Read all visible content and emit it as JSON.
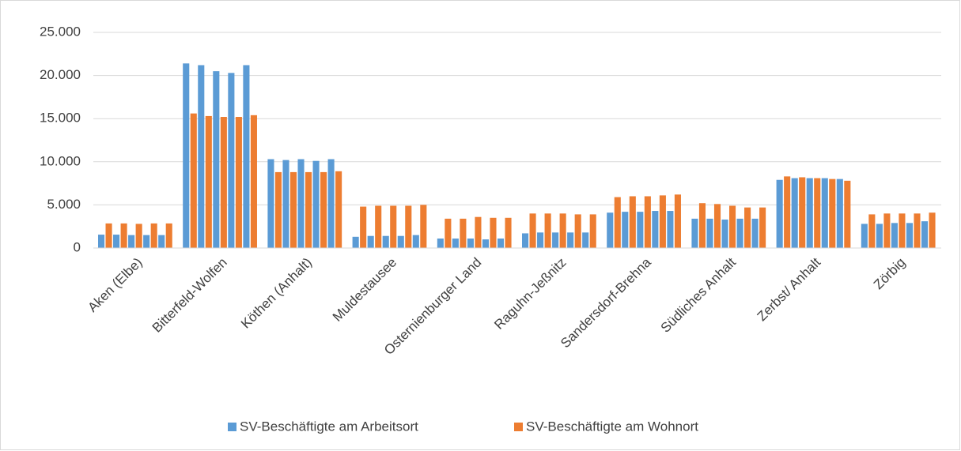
{
  "chart_data": {
    "type": "grouped-bar",
    "categories": [
      "Aken (Elbe)",
      "Bitterfeld-Wolfen",
      "Köthen (Anhalt)",
      "Muldestausee",
      "Osternienburger Land",
      "Raguhn-Jeßnitz",
      "Sandersdorf-Brehna",
      "Südliches Anhalt",
      "Zerbst/ Anhalt",
      "Zörbig"
    ],
    "series": [
      {
        "name": "SV-Beschäftigte am Arbeitsort",
        "color": "#5b9bd5",
        "values": [
          [
            1550,
            1550,
            1500,
            1500,
            1500
          ],
          [
            21400,
            21200,
            20500,
            20300,
            21200
          ],
          [
            10300,
            10200,
            10300,
            10100,
            10300
          ],
          [
            1300,
            1400,
            1400,
            1400,
            1500
          ],
          [
            1100,
            1100,
            1100,
            1000,
            1100
          ],
          [
            1700,
            1800,
            1800,
            1800,
            1800
          ],
          [
            4100,
            4200,
            4200,
            4300,
            4300
          ],
          [
            3400,
            3400,
            3300,
            3400,
            3400
          ],
          [
            7900,
            8100,
            8100,
            8100,
            8000
          ],
          [
            2800,
            2800,
            2900,
            2900,
            3100
          ]
        ]
      },
      {
        "name": "SV-Beschäftigte am Wohnort",
        "color": "#ed7d31",
        "values": [
          [
            2850,
            2850,
            2800,
            2850,
            2850
          ],
          [
            15600,
            15300,
            15200,
            15200,
            15400
          ],
          [
            8800,
            8800,
            8800,
            8800,
            8900
          ],
          [
            4800,
            4900,
            4900,
            4900,
            5000
          ],
          [
            3400,
            3400,
            3600,
            3500,
            3500
          ],
          [
            4000,
            4000,
            4000,
            3900,
            3900
          ],
          [
            5900,
            6000,
            6000,
            6100,
            6200
          ],
          [
            5200,
            5100,
            4900,
            4700,
            4700
          ],
          [
            8300,
            8200,
            8100,
            8000,
            7800
          ],
          [
            3900,
            4000,
            4000,
            4000,
            4100
          ]
        ]
      }
    ],
    "ylim": [
      0,
      25000
    ],
    "yticks": [
      0,
      {
        "value": 5000,
        "label": "5.000"
      },
      {
        "value": 10000,
        "label": "10.000"
      },
      {
        "value": 15000,
        "label": "15.000"
      },
      {
        "value": 20000,
        "label": "20.000"
      },
      {
        "value": 25000,
        "label": "25.000"
      }
    ],
    "grid": true,
    "legend": "bottom"
  }
}
